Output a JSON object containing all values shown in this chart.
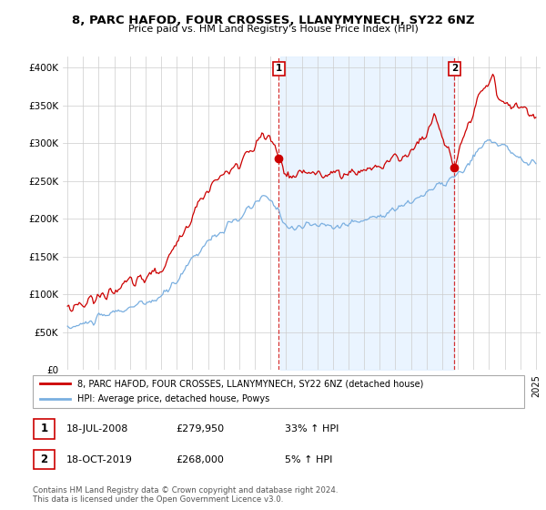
{
  "title": "8, PARC HAFOD, FOUR CROSSES, LLANYMYNECH, SY22 6NZ",
  "subtitle": "Price paid vs. HM Land Registry's House Price Index (HPI)",
  "ylabel_ticks": [
    "£0",
    "£50K",
    "£100K",
    "£150K",
    "£200K",
    "£250K",
    "£300K",
    "£350K",
    "£400K"
  ],
  "ytick_values": [
    0,
    50000,
    100000,
    150000,
    200000,
    250000,
    300000,
    350000,
    400000
  ],
  "ylim": [
    0,
    415000
  ],
  "xlim_start": 1994.7,
  "xlim_end": 2025.3,
  "transaction1_x": 2008.54,
  "transaction1_y": 279950,
  "transaction2_x": 2019.79,
  "transaction2_y": 268000,
  "legend_entry1": "8, PARC HAFOD, FOUR CROSSES, LLANYMYNECH, SY22 6NZ (detached house)",
  "legend_entry2": "HPI: Average price, detached house, Powys",
  "table_row1_date": "18-JUL-2008",
  "table_row1_price": "£279,950",
  "table_row1_hpi": "33% ↑ HPI",
  "table_row2_date": "18-OCT-2019",
  "table_row2_price": "£268,000",
  "table_row2_hpi": "5% ↑ HPI",
  "footer": "Contains HM Land Registry data © Crown copyright and database right 2024.\nThis data is licensed under the Open Government Licence v3.0.",
  "red_color": "#cc0000",
  "blue_color": "#7aafe0",
  "shade_color": "#ddeeff",
  "bg_color": "#ffffff",
  "grid_color": "#cccccc"
}
